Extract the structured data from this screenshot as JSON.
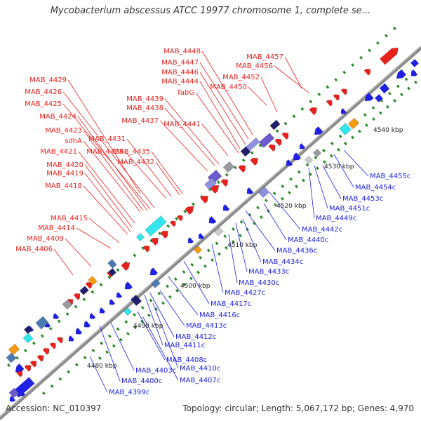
{
  "title": "Mycobacterium abscessus ATCC 19977 chromosome 1, complete se...",
  "footer": {
    "accession": "Accession: NC_010397",
    "summary": "Topology: circular; Length: 5,067,172 bp; Genes: 4,970"
  },
  "colors": {
    "forward": "#e8211d",
    "reverse": "#1f1fe6",
    "backbone": "#888888",
    "tick": "#2a8a2a",
    "cyan": "#33e6ee",
    "orange": "#f59a14",
    "gray": "#9a9aa0",
    "purple": "#6a5acd",
    "lavender": "#9090e0",
    "navy": "#20206a",
    "steel": "#4a7ab0"
  },
  "kbp_labels": [
    "4480 kbp",
    "4490 kbp",
    "4500 kbp",
    "4510 kbp",
    "4520 kbp",
    "4530 kbp",
    "4540 kbp"
  ],
  "forward_genes": [
    {
      "name": "MAB_4457"
    },
    {
      "name": "MAB_4456"
    },
    {
      "name": "MAB_4452"
    },
    {
      "name": "MAB_4450"
    },
    {
      "name": "MAB_4448"
    },
    {
      "name": "MAB_4447"
    },
    {
      "name": "MAB_4446"
    },
    {
      "name": "MAB_4444"
    },
    {
      "name": "fabG"
    },
    {
      "name": "MAB_4441"
    },
    {
      "name": "MAB_4439"
    },
    {
      "name": "MAB_4438"
    },
    {
      "name": "MAB_4437"
    },
    {
      "name": "MAB_4435"
    },
    {
      "name": "MAB_4432"
    },
    {
      "name": "MAB_4431"
    },
    {
      "name": "MAB_4429"
    },
    {
      "name": "MAB_4428"
    },
    {
      "name": "MAB_4426"
    },
    {
      "name": "MAB_4425"
    },
    {
      "name": "MAB_4424"
    },
    {
      "name": "MAB_4423"
    },
    {
      "name": "sdhA"
    },
    {
      "name": "MAB_4421"
    },
    {
      "name": "MAB_4420"
    },
    {
      "name": "MAB_4419"
    },
    {
      "name": "MAB_4418"
    },
    {
      "name": "MAB_4415"
    },
    {
      "name": "MAB_4414"
    },
    {
      "name": "MAB_4409"
    },
    {
      "name": "MAB_4406"
    }
  ],
  "reverse_genes": [
    {
      "name": "MAB_4455c"
    },
    {
      "name": "MAB_4454c"
    },
    {
      "name": "MAB_4453c"
    },
    {
      "name": "MAB_4451c"
    },
    {
      "name": "MAB_4449c"
    },
    {
      "name": "MAB_4442c"
    },
    {
      "name": "MAB_4440c"
    },
    {
      "name": "MAB_4436c"
    },
    {
      "name": "MAB_4434c"
    },
    {
      "name": "MAB_4433c"
    },
    {
      "name": "MAB_4430c"
    },
    {
      "name": "MAB_4427c"
    },
    {
      "name": "MAB_4417c"
    },
    {
      "name": "MAB_4416c"
    },
    {
      "name": "MAB_4413c"
    },
    {
      "name": "MAB_4412c"
    },
    {
      "name": "MAB_4411c"
    },
    {
      "name": "MAB_4410c"
    },
    {
      "name": "MAB_4408c"
    },
    {
      "name": "MAB_4407c"
    },
    {
      "name": "MAB_4403c"
    },
    {
      "name": "MAB_4400c"
    },
    {
      "name": "MAB_4399c"
    }
  ]
}
